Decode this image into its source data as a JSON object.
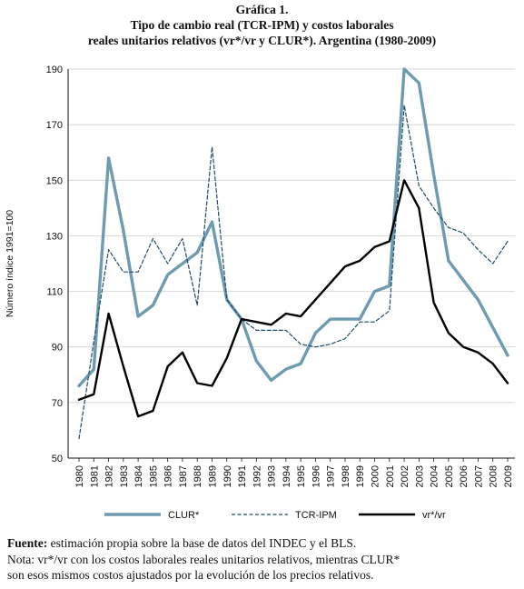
{
  "header": {
    "figure_label": "Gráfica 1.",
    "title_line1": "Tipo de cambio real (TCR-IPM) y costos laborales",
    "title_line2": "reales unitarios relativos (vr*/vr y CLUR*). Argentina (1980-2009)"
  },
  "chart_data": {
    "type": "line",
    "ylabel": "Número índice 1991=100",
    "ylim": [
      50,
      190
    ],
    "yticks": [
      50,
      70,
      90,
      110,
      130,
      150,
      170,
      190
    ],
    "xlim": [
      1980,
      2009
    ],
    "xtick_labels": [
      "1980",
      "1981",
      "1982",
      "1983",
      "1984",
      "1985",
      "1986",
      "1987",
      "1988",
      "1989",
      "1990",
      "1991",
      "1992",
      "1993",
      "1994",
      "1995",
      "1996",
      "1997",
      "1998",
      "1999",
      "2000",
      "2001",
      "2002",
      "2003",
      "2004",
      "2005",
      "2006",
      "2007",
      "2008",
      "2009"
    ],
    "x": [
      1980,
      1981,
      1982,
      1983,
      1984,
      1985,
      1986,
      1987,
      1988,
      1989,
      1990,
      1991,
      1992,
      1993,
      1994,
      1995,
      1996,
      1997,
      1998,
      1999,
      2000,
      2001,
      2002,
      2003,
      2004,
      2005,
      2006,
      2007,
      2008,
      2009
    ],
    "grid": "horizontal",
    "legend_position": "bottom",
    "series": [
      {
        "name": "CLUR*",
        "color": "#6f9bb0",
        "style": "solid-thick",
        "values": [
          76,
          82,
          158,
          132,
          101,
          105,
          116,
          120,
          124,
          135,
          107,
          100,
          85,
          78,
          82,
          84,
          95,
          100,
          100,
          100,
          110,
          112,
          190,
          185,
          152,
          121,
          114,
          107,
          97,
          87
        ]
      },
      {
        "name": "TCR-IPM",
        "color": "#1e4d6b",
        "style": "dashed",
        "values": [
          57,
          92,
          125,
          117,
          117,
          129,
          120,
          129,
          105,
          162,
          107,
          100,
          96,
          96,
          96,
          91,
          90,
          91,
          93,
          99,
          99,
          103,
          177,
          148,
          140,
          133,
          131,
          125,
          120,
          128
        ]
      },
      {
        "name": "vr*/vr",
        "color": "#000000",
        "style": "solid",
        "values": [
          71,
          73,
          102,
          83,
          65,
          67,
          83,
          88,
          77,
          76,
          86,
          100,
          99,
          98,
          102,
          101,
          107,
          113,
          119,
          121,
          126,
          128,
          150,
          140,
          106,
          95,
          90,
          88,
          84,
          77
        ]
      }
    ]
  },
  "notes": {
    "source_label": "Fuente:",
    "source_text": "estimación propia sobre la base de datos del INDEC y el BLS.",
    "note_line1": "Nota: vr*/vr con los costos laborales reales unitarios relativos, mientras CLUR*",
    "note_line2": "son esos mismos costos ajustados por la evolución de los precios relativos."
  }
}
